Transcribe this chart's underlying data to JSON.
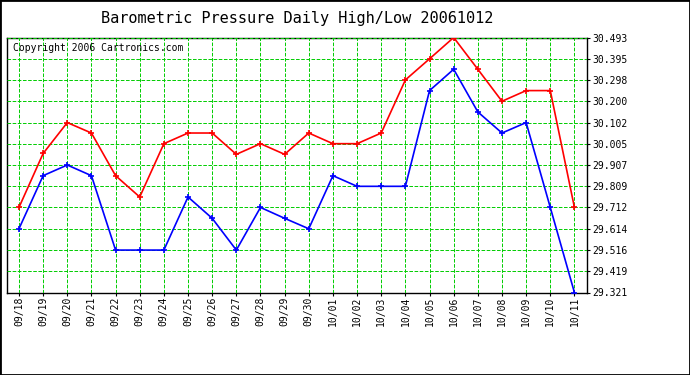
{
  "title": "Barometric Pressure Daily High/Low 20061012",
  "copyright": "Copyright 2006 Cartronics.com",
  "dates": [
    "09/18",
    "09/19",
    "09/20",
    "09/21",
    "09/22",
    "09/23",
    "09/24",
    "09/25",
    "09/26",
    "09/27",
    "09/28",
    "09/29",
    "09/30",
    "10/01",
    "10/02",
    "10/03",
    "10/04",
    "10/05",
    "10/06",
    "10/07",
    "10/08",
    "10/09",
    "10/10",
    "10/11"
  ],
  "high": [
    29.712,
    29.96,
    30.102,
    30.054,
    29.858,
    29.76,
    30.005,
    30.054,
    30.054,
    29.956,
    30.005,
    29.956,
    30.054,
    30.005,
    30.005,
    30.054,
    30.298,
    30.395,
    30.493,
    30.347,
    30.2,
    30.249,
    30.249,
    29.712
  ],
  "low": [
    29.614,
    29.858,
    29.907,
    29.858,
    29.516,
    29.516,
    29.516,
    29.76,
    29.662,
    29.516,
    29.712,
    29.662,
    29.614,
    29.858,
    29.809,
    29.809,
    29.809,
    30.249,
    30.347,
    30.151,
    30.054,
    30.102,
    29.712,
    29.321
  ],
  "ylim_min": 29.321,
  "ylim_max": 30.493,
  "yticks": [
    29.321,
    29.419,
    29.516,
    29.614,
    29.712,
    29.809,
    29.907,
    30.005,
    30.102,
    30.2,
    30.298,
    30.395,
    30.493
  ],
  "high_color": "#ff0000",
  "low_color": "#0000ff",
  "grid_color": "#00cc00",
  "bg_color": "#ffffff",
  "title_fontsize": 11,
  "copyright_fontsize": 7,
  "tick_fontsize": 7,
  "marker": "+",
  "marker_size": 4,
  "linewidth": 1.2
}
